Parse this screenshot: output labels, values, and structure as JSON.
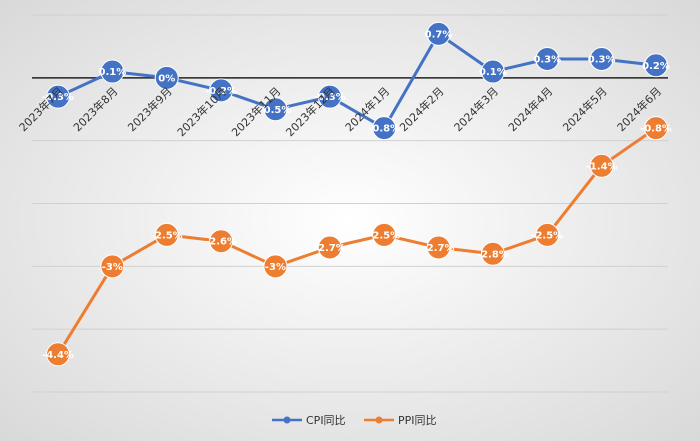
{
  "chart_data": {
    "type": "line",
    "title": "",
    "xlabel": "",
    "ylabel": "",
    "categories": [
      "2023年7月",
      "2023年8月",
      "2023年9月",
      "2023年10月",
      "2023年11月",
      "2023年12月",
      "2024年1月",
      "2024年2月",
      "2024年3月",
      "2024年4月",
      "2024年5月",
      "2024年6月"
    ],
    "ylim": [
      -5.0,
      1.0
    ],
    "grid": true,
    "legend": "bottom",
    "series": [
      {
        "name": "CPI同比",
        "color": "#4472C4",
        "values": [
          -0.3,
          0.1,
          0.0,
          -0.2,
          -0.5,
          -0.3,
          -0.8,
          0.7,
          0.1,
          0.3,
          0.3,
          0.2
        ],
        "labels": [
          "-0.3%",
          "0.1%",
          "0%",
          "-0.2%",
          "-0.5%",
          "-0.3%",
          "-0.8%",
          "0.7%",
          "0.1%",
          "0.3%",
          "0.3%",
          "0.2%"
        ]
      },
      {
        "name": "PPI同比",
        "color": "#ED7D31",
        "values": [
          -4.4,
          -3.0,
          -2.5,
          -2.6,
          -3.0,
          -2.7,
          -2.5,
          -2.7,
          -2.8,
          -2.5,
          -1.4,
          -0.8
        ],
        "labels": [
          "-4.4%",
          "-3%",
          "-2.5%",
          "-2.6%",
          "-3%",
          "-2.7%",
          "-2.5%",
          "-2.7%",
          "-2.8%",
          "-2.5%",
          "-1.4%",
          "-0.8%"
        ]
      }
    ]
  }
}
